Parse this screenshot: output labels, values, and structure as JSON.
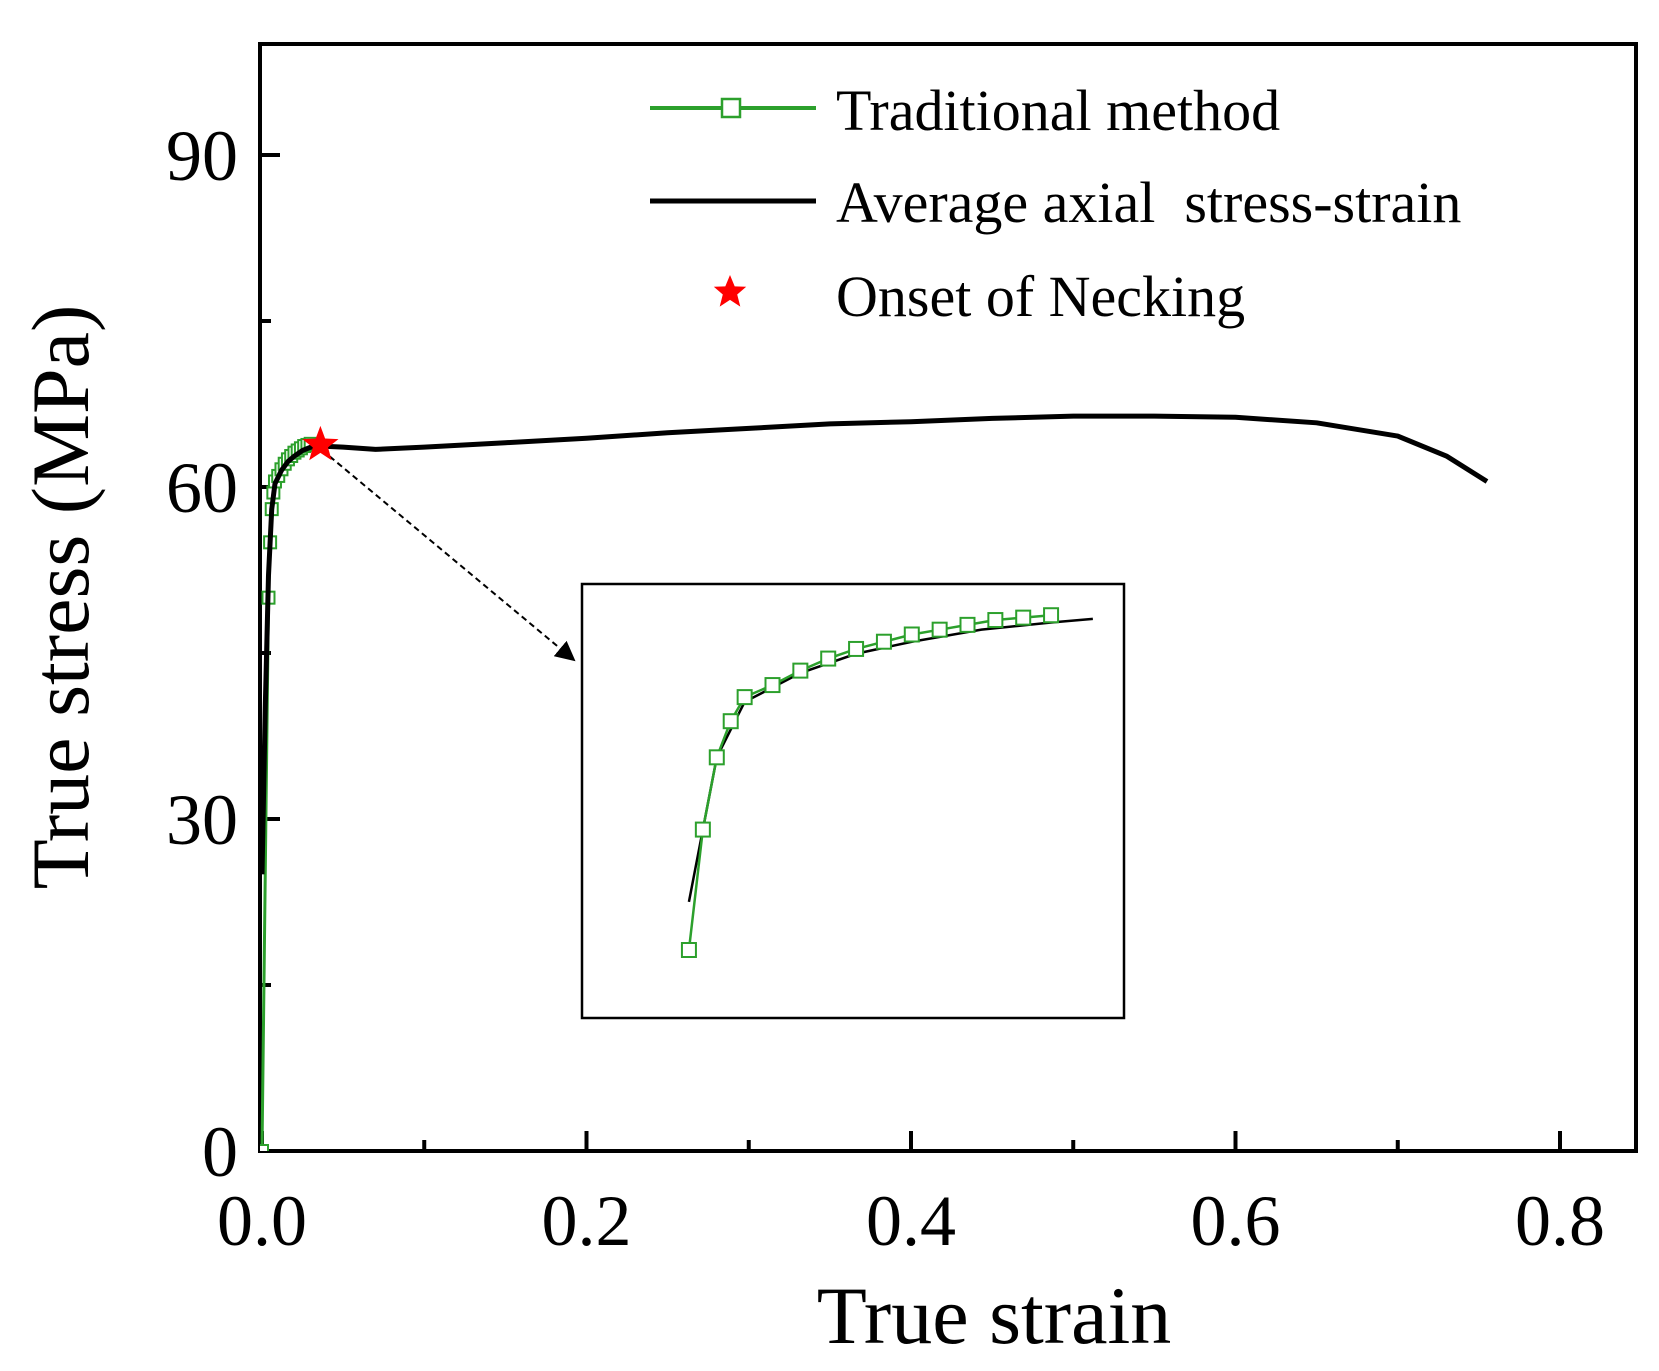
{
  "chart_data": {
    "type": "line",
    "xlabel": "True strain",
    "ylabel": "True stress (MPa)",
    "xlim": [
      0.0,
      0.85
    ],
    "ylim": [
      0,
      100
    ],
    "xticks": [
      0.0,
      0.2,
      0.4,
      0.6,
      0.8
    ],
    "xtick_labels": [
      "0.0",
      "0.2",
      "0.4",
      "0.6",
      "0.8"
    ],
    "xminor_ticks": [
      0.1,
      0.3,
      0.5,
      0.7
    ],
    "yticks": [
      0,
      30,
      60,
      90
    ],
    "ytick_labels": [
      "0",
      "30",
      "60",
      "90"
    ],
    "yminor_ticks": [
      15,
      45,
      75
    ],
    "legend_position": "top-right",
    "series": [
      {
        "name": "Traditional method",
        "style": "line-square-markers",
        "color": "#2ca02c",
        "x": [
          0.0,
          0.004,
          0.005,
          0.006,
          0.007,
          0.008,
          0.01,
          0.012,
          0.014,
          0.016,
          0.018,
          0.02,
          0.022,
          0.024,
          0.026,
          0.028,
          0.03
        ],
        "y": [
          0,
          50,
          55,
          58,
          59.5,
          60.5,
          61,
          61.6,
          62.1,
          62.5,
          62.8,
          63.1,
          63.3,
          63.5,
          63.7,
          63.8,
          63.9
        ]
      },
      {
        "name": "Average axial  stress-strain",
        "style": "line",
        "color": "#000000",
        "x": [
          0.0,
          0.002,
          0.004,
          0.006,
          0.008,
          0.012,
          0.016,
          0.02,
          0.025,
          0.03,
          0.035,
          0.05,
          0.07,
          0.1,
          0.15,
          0.2,
          0.25,
          0.3,
          0.35,
          0.4,
          0.45,
          0.5,
          0.55,
          0.6,
          0.65,
          0.7,
          0.73,
          0.755
        ],
        "y": [
          25,
          40,
          52,
          58,
          60.3,
          61.5,
          62.3,
          62.8,
          63.3,
          63.6,
          63.7,
          63.6,
          63.4,
          63.6,
          64.0,
          64.4,
          64.9,
          65.3,
          65.7,
          65.9,
          66.2,
          66.4,
          66.4,
          66.3,
          65.8,
          64.6,
          62.8,
          60.5
        ]
      }
    ],
    "markers": [
      {
        "name": "Onset of Necking",
        "symbol": "star",
        "color": "#ff0000",
        "x": 0.036,
        "y": 63.8
      }
    ],
    "inset": {
      "description": "zoom of the initial yielding region",
      "series_names": [
        "Traditional method",
        "Average axial  stress-strain"
      ]
    },
    "colors": {
      "traditional": "#2ca02c",
      "average": "#000000",
      "necking": "#ff0000"
    }
  }
}
